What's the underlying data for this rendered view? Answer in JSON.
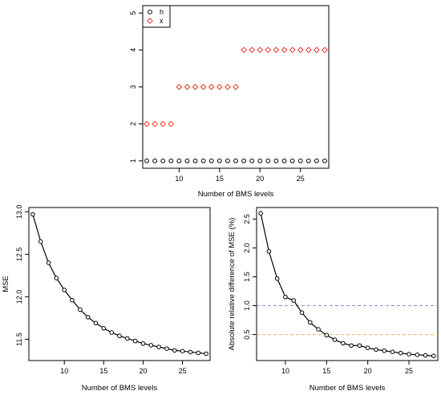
{
  "chart_data": [
    {
      "type": "scatter",
      "title": "",
      "xlabel": "Number of BMS levels",
      "ylabel": "",
      "xlim": [
        5.5,
        28.5
      ],
      "ylim": [
        0.8,
        5.2
      ],
      "xticks": [
        "10",
        "15",
        "20",
        "25"
      ],
      "yticks": [
        "1",
        "2",
        "3",
        "4",
        "5"
      ],
      "legend": {
        "position": "top-left",
        "entries": [
          "h",
          "x"
        ]
      },
      "series": [
        {
          "name": "h",
          "marker": "circle",
          "color": "#000000",
          "x": [
            6,
            7,
            8,
            9,
            10,
            11,
            12,
            13,
            14,
            15,
            16,
            17,
            18,
            19,
            20,
            21,
            22,
            23,
            24,
            25,
            26,
            27,
            28
          ],
          "y": [
            1,
            1,
            1,
            1,
            1,
            1,
            1,
            1,
            1,
            1,
            1,
            1,
            1,
            1,
            1,
            1,
            1,
            1,
            1,
            1,
            1,
            1,
            1
          ]
        },
        {
          "name": "x",
          "marker": "diamond",
          "color": "#e3362e",
          "x": [
            6,
            7,
            8,
            9,
            10,
            11,
            12,
            13,
            14,
            15,
            16,
            17,
            18,
            19,
            20,
            21,
            22,
            23,
            24,
            25,
            26,
            27,
            28
          ],
          "y": [
            2,
            2,
            2,
            2,
            3,
            3,
            3,
            3,
            3,
            3,
            3,
            3,
            4,
            4,
            4,
            4,
            4,
            4,
            4,
            4,
            4,
            4,
            4
          ]
        }
      ]
    },
    {
      "type": "line",
      "title": "",
      "xlabel": "Number of BMS levels",
      "ylabel": "MSE",
      "xlim": [
        5.5,
        28.5
      ],
      "ylim": [
        11.25,
        13.05
      ],
      "xticks": [
        "10",
        "15",
        "20",
        "25"
      ],
      "yticks": [
        "11.5",
        "12.0",
        "12.5",
        "13.0"
      ],
      "series": [
        {
          "color": "#000000",
          "x": [
            6,
            7,
            8,
            9,
            10,
            11,
            12,
            13,
            14,
            15,
            16,
            17,
            18,
            19,
            20,
            21,
            22,
            23,
            24,
            25,
            26,
            27,
            28
          ],
          "y": [
            12.97,
            12.65,
            12.4,
            12.22,
            12.08,
            11.96,
            11.85,
            11.76,
            11.69,
            11.63,
            11.58,
            11.54,
            11.51,
            11.48,
            11.45,
            11.43,
            11.41,
            11.39,
            11.37,
            11.36,
            11.35,
            11.34,
            11.33
          ]
        }
      ]
    },
    {
      "type": "line",
      "title": "",
      "xlabel": "Number of BMS levels",
      "ylabel": "Absolute relative difference of MSE (%)",
      "xlim": [
        6.5,
        28.5
      ],
      "ylim": [
        0.05,
        2.7
      ],
      "xticks": [
        "10",
        "15",
        "20",
        "25"
      ],
      "yticks": [
        "0.5",
        "1.0",
        "1.5",
        "2.0",
        "2.5"
      ],
      "hlines": [
        {
          "y": 1.0,
          "color": "#8a8fd4",
          "style": "dashed"
        },
        {
          "y": 0.5,
          "color": "#f2b15a",
          "style": "dashed"
        }
      ],
      "series": [
        {
          "color": "#000000",
          "x": [
            7,
            8,
            9,
            10,
            11,
            12,
            13,
            14,
            15,
            16,
            17,
            18,
            19,
            20,
            21,
            22,
            23,
            24,
            25,
            26,
            27,
            28
          ],
          "y": [
            2.6,
            1.94,
            1.47,
            1.15,
            1.09,
            0.88,
            0.71,
            0.59,
            0.49,
            0.41,
            0.35,
            0.31,
            0.31,
            0.27,
            0.24,
            0.22,
            0.2,
            0.18,
            0.16,
            0.15,
            0.14,
            0.13
          ]
        }
      ]
    }
  ]
}
